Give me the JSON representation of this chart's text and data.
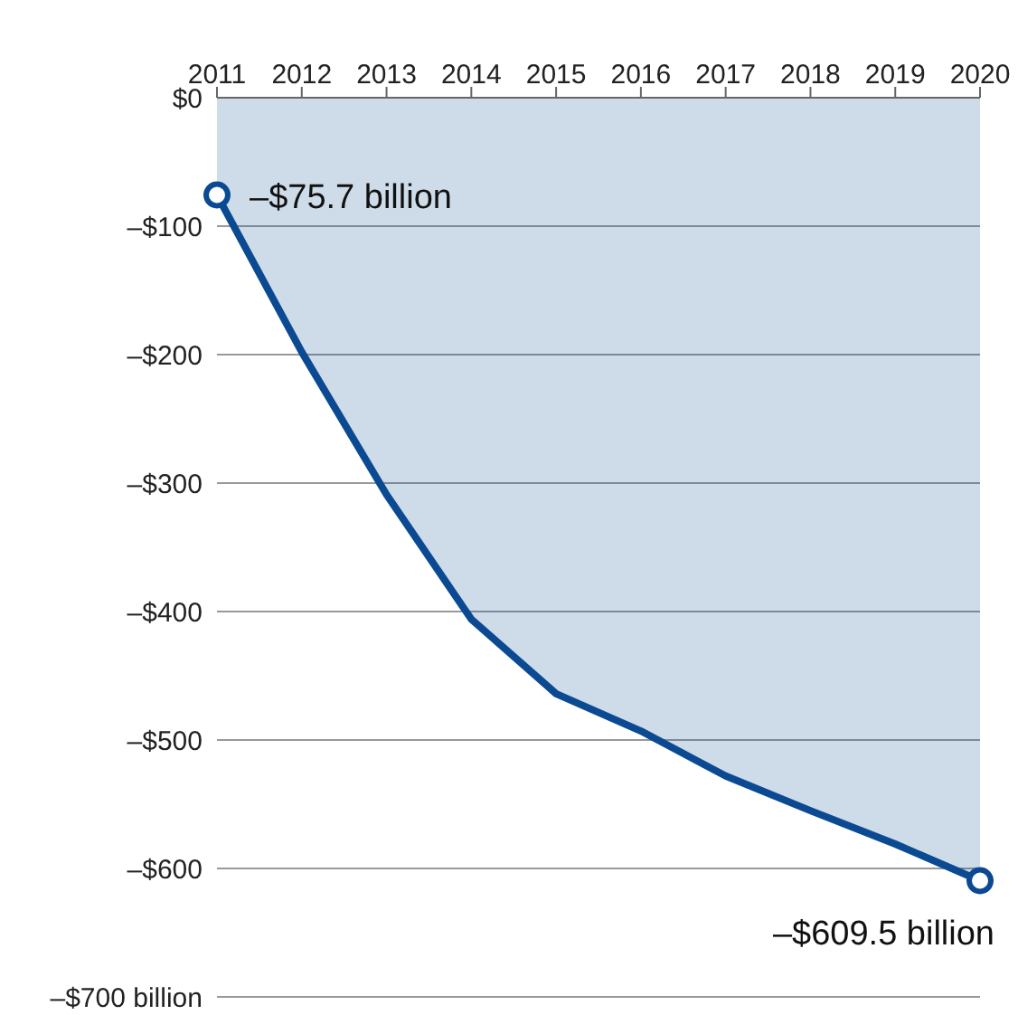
{
  "chart_data": {
    "type": "area",
    "categories": [
      "2011",
      "2012",
      "2013",
      "2014",
      "2015",
      "2016",
      "2017",
      "2018",
      "2019",
      "2020"
    ],
    "series": [
      {
        "color": "#0b4a92",
        "values": [
          -75.7,
          -198,
          -309,
          -406,
          -464,
          -493,
          -528,
          -555,
          -581,
          -609.5
        ],
        "value_labels": [
          "–$75.7 billion",
          null,
          null,
          null,
          null,
          null,
          null,
          null,
          null,
          "–$609.5 billion"
        ]
      }
    ],
    "ylim": [
      -700,
      0
    ],
    "yticks": [
      {
        "value": 0,
        "label": "$0"
      },
      {
        "value": -100,
        "label": "–$100"
      },
      {
        "value": -200,
        "label": "–$200"
      },
      {
        "value": -300,
        "label": "–$300"
      },
      {
        "value": -400,
        "label": "–$400"
      },
      {
        "value": -500,
        "label": "–$500"
      },
      {
        "value": -600,
        "label": "–$600"
      },
      {
        "value": -700,
        "label": "–$700 billion"
      }
    ],
    "grid": "y"
  }
}
